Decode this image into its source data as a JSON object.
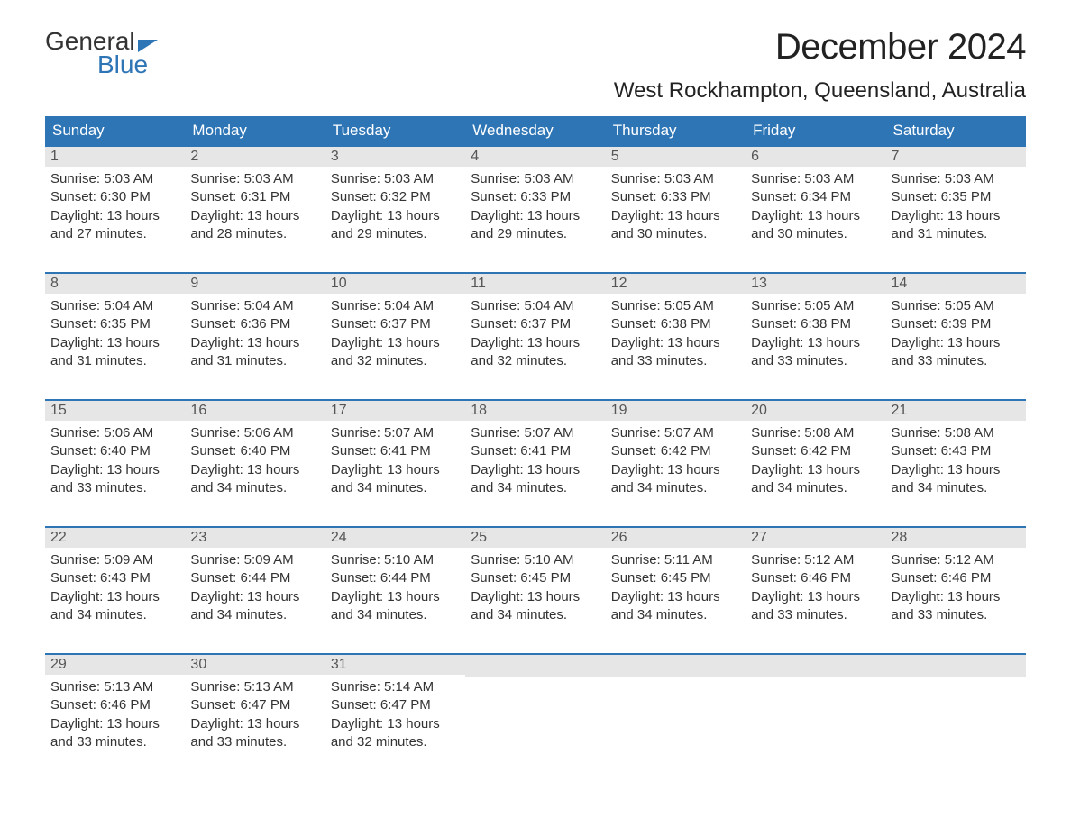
{
  "logo": {
    "text1": "General",
    "text2": "Blue"
  },
  "title": "December 2024",
  "location": "West Rockhampton, Queensland, Australia",
  "colors": {
    "header_bg": "#2e75b6",
    "header_text": "#ffffff",
    "daynum_bg": "#e6e6e6",
    "daynum_text": "#555555",
    "body_text": "#333333",
    "row_border": "#2e75b6",
    "logo_accent": "#2e75b6",
    "page_bg": "#ffffff"
  },
  "weekdays": [
    "Sunday",
    "Monday",
    "Tuesday",
    "Wednesday",
    "Thursday",
    "Friday",
    "Saturday"
  ],
  "weeks": [
    [
      {
        "day": "1",
        "sunrise": "5:03 AM",
        "sunset": "6:30 PM",
        "daylight_h": "13",
        "daylight_m": "27"
      },
      {
        "day": "2",
        "sunrise": "5:03 AM",
        "sunset": "6:31 PM",
        "daylight_h": "13",
        "daylight_m": "28"
      },
      {
        "day": "3",
        "sunrise": "5:03 AM",
        "sunset": "6:32 PM",
        "daylight_h": "13",
        "daylight_m": "29"
      },
      {
        "day": "4",
        "sunrise": "5:03 AM",
        "sunset": "6:33 PM",
        "daylight_h": "13",
        "daylight_m": "29"
      },
      {
        "day": "5",
        "sunrise": "5:03 AM",
        "sunset": "6:33 PM",
        "daylight_h": "13",
        "daylight_m": "30"
      },
      {
        "day": "6",
        "sunrise": "5:03 AM",
        "sunset": "6:34 PM",
        "daylight_h": "13",
        "daylight_m": "30"
      },
      {
        "day": "7",
        "sunrise": "5:03 AM",
        "sunset": "6:35 PM",
        "daylight_h": "13",
        "daylight_m": "31"
      }
    ],
    [
      {
        "day": "8",
        "sunrise": "5:04 AM",
        "sunset": "6:35 PM",
        "daylight_h": "13",
        "daylight_m": "31"
      },
      {
        "day": "9",
        "sunrise": "5:04 AM",
        "sunset": "6:36 PM",
        "daylight_h": "13",
        "daylight_m": "31"
      },
      {
        "day": "10",
        "sunrise": "5:04 AM",
        "sunset": "6:37 PM",
        "daylight_h": "13",
        "daylight_m": "32"
      },
      {
        "day": "11",
        "sunrise": "5:04 AM",
        "sunset": "6:37 PM",
        "daylight_h": "13",
        "daylight_m": "32"
      },
      {
        "day": "12",
        "sunrise": "5:05 AM",
        "sunset": "6:38 PM",
        "daylight_h": "13",
        "daylight_m": "33"
      },
      {
        "day": "13",
        "sunrise": "5:05 AM",
        "sunset": "6:38 PM",
        "daylight_h": "13",
        "daylight_m": "33"
      },
      {
        "day": "14",
        "sunrise": "5:05 AM",
        "sunset": "6:39 PM",
        "daylight_h": "13",
        "daylight_m": "33"
      }
    ],
    [
      {
        "day": "15",
        "sunrise": "5:06 AM",
        "sunset": "6:40 PM",
        "daylight_h": "13",
        "daylight_m": "33"
      },
      {
        "day": "16",
        "sunrise": "5:06 AM",
        "sunset": "6:40 PM",
        "daylight_h": "13",
        "daylight_m": "34"
      },
      {
        "day": "17",
        "sunrise": "5:07 AM",
        "sunset": "6:41 PM",
        "daylight_h": "13",
        "daylight_m": "34"
      },
      {
        "day": "18",
        "sunrise": "5:07 AM",
        "sunset": "6:41 PM",
        "daylight_h": "13",
        "daylight_m": "34"
      },
      {
        "day": "19",
        "sunrise": "5:07 AM",
        "sunset": "6:42 PM",
        "daylight_h": "13",
        "daylight_m": "34"
      },
      {
        "day": "20",
        "sunrise": "5:08 AM",
        "sunset": "6:42 PM",
        "daylight_h": "13",
        "daylight_m": "34"
      },
      {
        "day": "21",
        "sunrise": "5:08 AM",
        "sunset": "6:43 PM",
        "daylight_h": "13",
        "daylight_m": "34"
      }
    ],
    [
      {
        "day": "22",
        "sunrise": "5:09 AM",
        "sunset": "6:43 PM",
        "daylight_h": "13",
        "daylight_m": "34"
      },
      {
        "day": "23",
        "sunrise": "5:09 AM",
        "sunset": "6:44 PM",
        "daylight_h": "13",
        "daylight_m": "34"
      },
      {
        "day": "24",
        "sunrise": "5:10 AM",
        "sunset": "6:44 PM",
        "daylight_h": "13",
        "daylight_m": "34"
      },
      {
        "day": "25",
        "sunrise": "5:10 AM",
        "sunset": "6:45 PM",
        "daylight_h": "13",
        "daylight_m": "34"
      },
      {
        "day": "26",
        "sunrise": "5:11 AM",
        "sunset": "6:45 PM",
        "daylight_h": "13",
        "daylight_m": "34"
      },
      {
        "day": "27",
        "sunrise": "5:12 AM",
        "sunset": "6:46 PM",
        "daylight_h": "13",
        "daylight_m": "33"
      },
      {
        "day": "28",
        "sunrise": "5:12 AM",
        "sunset": "6:46 PM",
        "daylight_h": "13",
        "daylight_m": "33"
      }
    ],
    [
      {
        "day": "29",
        "sunrise": "5:13 AM",
        "sunset": "6:46 PM",
        "daylight_h": "13",
        "daylight_m": "33"
      },
      {
        "day": "30",
        "sunrise": "5:13 AM",
        "sunset": "6:47 PM",
        "daylight_h": "13",
        "daylight_m": "33"
      },
      {
        "day": "31",
        "sunrise": "5:14 AM",
        "sunset": "6:47 PM",
        "daylight_h": "13",
        "daylight_m": "32"
      },
      null,
      null,
      null,
      null
    ]
  ],
  "labels": {
    "sunrise_prefix": "Sunrise: ",
    "sunset_prefix": "Sunset: ",
    "daylight_prefix": "Daylight: ",
    "hours_word": " hours",
    "and_word": "and ",
    "minutes_word": " minutes."
  }
}
